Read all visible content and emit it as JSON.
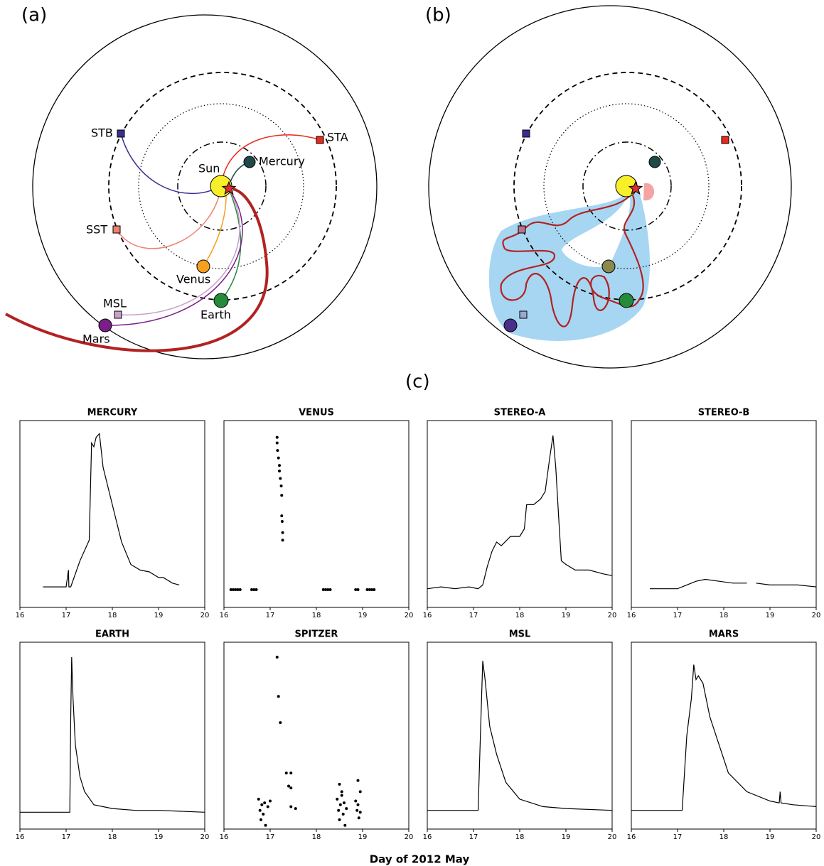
{
  "panels": {
    "a": "(a)",
    "b": "(b)",
    "c": "(c)"
  },
  "diagram_labels": [
    "STB",
    "STA",
    "Sun",
    "Mercury",
    "SST",
    "Venus",
    "MSL",
    "Earth",
    "Mars"
  ],
  "x_label": "Day of 2012 May",
  "chart_data": [
    {
      "type": "line",
      "title": "MERCURY",
      "color": "#000000",
      "xlim": [
        16,
        20
      ],
      "ylim": [
        0,
        1
      ],
      "xticks": [
        16,
        17,
        18,
        19,
        20
      ],
      "x": [
        16.5,
        16.8,
        17.0,
        17.05,
        17.06,
        17.1,
        17.3,
        17.5,
        17.55,
        17.6,
        17.65,
        17.72,
        17.8,
        18.0,
        18.2,
        18.4,
        18.6,
        18.8,
        19.0,
        19.1,
        19.3,
        19.45
      ],
      "values": [
        0.11,
        0.11,
        0.11,
        0.2,
        0.11,
        0.11,
        0.25,
        0.36,
        0.88,
        0.86,
        0.91,
        0.93,
        0.75,
        0.55,
        0.35,
        0.23,
        0.2,
        0.19,
        0.16,
        0.16,
        0.13,
        0.12
      ]
    },
    {
      "type": "scatter",
      "title": "VENUS",
      "color": "#000000",
      "xlim": [
        16,
        20
      ],
      "ylim": [
        0,
        1
      ],
      "xticks": [
        16,
        17,
        18,
        19,
        20
      ],
      "x": [
        16.15,
        16.2,
        16.25,
        16.3,
        16.35,
        16.6,
        16.65,
        16.7,
        17.15,
        17.15,
        17.16,
        17.18,
        17.2,
        17.2,
        17.22,
        17.24,
        17.25,
        17.25,
        17.26,
        17.27,
        17.27,
        18.15,
        18.2,
        18.25,
        18.3,
        18.85,
        18.9,
        19.1,
        19.15,
        19.2,
        19.25
      ],
      "values": [
        0.095,
        0.095,
        0.095,
        0.095,
        0.095,
        0.095,
        0.095,
        0.095,
        0.91,
        0.88,
        0.84,
        0.8,
        0.76,
        0.73,
        0.69,
        0.65,
        0.6,
        0.49,
        0.46,
        0.4,
        0.36,
        0.095,
        0.095,
        0.095,
        0.095,
        0.095,
        0.095,
        0.095,
        0.095,
        0.095,
        0.095
      ]
    },
    {
      "type": "line",
      "title": "STEREO-A",
      "color": "#000000",
      "xlim": [
        16,
        20
      ],
      "ylim": [
        0,
        1
      ],
      "xticks": [
        16,
        17,
        18,
        19,
        20
      ],
      "x": [
        16.0,
        16.3,
        16.6,
        16.9,
        17.1,
        17.2,
        17.3,
        17.4,
        17.5,
        17.6,
        17.8,
        18.0,
        18.1,
        18.15,
        18.3,
        18.45,
        18.55,
        18.65,
        18.72,
        18.78,
        18.85,
        18.9,
        19.0,
        19.2,
        19.5,
        19.8,
        20.0
      ],
      "values": [
        0.1,
        0.11,
        0.1,
        0.11,
        0.1,
        0.12,
        0.22,
        0.3,
        0.35,
        0.33,
        0.38,
        0.38,
        0.42,
        0.55,
        0.55,
        0.58,
        0.62,
        0.8,
        0.92,
        0.75,
        0.45,
        0.25,
        0.23,
        0.2,
        0.2,
        0.18,
        0.17
      ]
    },
    {
      "type": "line",
      "title": "STEREO-B",
      "color": "#000000",
      "xlim": [
        16,
        20
      ],
      "ylim": [
        0,
        1
      ],
      "xticks": [
        16,
        17,
        18,
        19,
        20
      ],
      "x": [
        16.4,
        16.7,
        17.0,
        17.2,
        17.4,
        17.6,
        17.9,
        18.2,
        18.5,
        18.6,
        18.7,
        19.0,
        19.3,
        19.6,
        20.0
      ],
      "values": [
        0.1,
        0.1,
        0.1,
        0.12,
        0.14,
        0.15,
        0.14,
        0.13,
        0.13,
        null,
        0.13,
        0.12,
        0.12,
        0.12,
        0.11
      ]
    },
    {
      "type": "line",
      "title": "EARTH",
      "color": "#000000",
      "xlim": [
        16,
        20
      ],
      "ylim": [
        0,
        1
      ],
      "xticks": [
        16,
        17,
        18,
        19,
        20
      ],
      "x": [
        16.0,
        16.5,
        17.08,
        17.1,
        17.12,
        17.15,
        17.2,
        17.3,
        17.4,
        17.6,
        18.0,
        18.5,
        19.0,
        20.0
      ],
      "values": [
        0.09,
        0.09,
        0.09,
        0.6,
        0.92,
        0.7,
        0.45,
        0.28,
        0.2,
        0.13,
        0.11,
        0.1,
        0.1,
        0.09
      ]
    },
    {
      "type": "scatter",
      "title": "SPITZER",
      "color": "#000000",
      "xlim": [
        16,
        20
      ],
      "ylim": [
        0,
        1
      ],
      "xticks": [
        16,
        17,
        18,
        19,
        20
      ],
      "x": [
        16.75,
        16.78,
        16.8,
        16.82,
        16.85,
        16.88,
        16.9,
        16.95,
        17.0,
        17.15,
        17.18,
        17.22,
        17.35,
        17.45,
        17.4,
        17.45,
        17.45,
        17.55,
        18.45,
        18.48,
        18.5,
        18.52,
        18.55,
        18.58,
        18.6,
        18.62,
        18.65,
        18.5,
        18.55,
        18.85,
        18.88,
        18.9,
        18.92,
        18.95,
        18.9,
        18.95
      ],
      "values": [
        0.16,
        0.1,
        0.05,
        0.13,
        0.08,
        0.14,
        0.02,
        0.12,
        0.15,
        0.92,
        0.71,
        0.57,
        0.3,
        0.3,
        0.23,
        0.22,
        0.12,
        0.11,
        0.16,
        0.1,
        0.05,
        0.13,
        0.2,
        0.08,
        0.14,
        0.02,
        0.11,
        0.24,
        0.18,
        0.15,
        0.1,
        0.26,
        0.06,
        0.2,
        0.13,
        0.09
      ]
    },
    {
      "type": "line",
      "title": "MSL",
      "color": "#000000",
      "xlim": [
        16,
        20
      ],
      "ylim": [
        0,
        1
      ],
      "xticks": [
        16,
        17,
        18,
        19,
        20
      ],
      "x": [
        16.0,
        16.5,
        17.1,
        17.15,
        17.2,
        17.25,
        17.35,
        17.5,
        17.7,
        18.0,
        18.5,
        19.0,
        20.0
      ],
      "values": [
        0.1,
        0.1,
        0.1,
        0.5,
        0.9,
        0.8,
        0.55,
        0.4,
        0.25,
        0.16,
        0.12,
        0.11,
        0.1
      ]
    },
    {
      "type": "line",
      "title": "MARS",
      "color": "#000000",
      "xlim": [
        16,
        20
      ],
      "ylim": [
        0,
        1
      ],
      "xticks": [
        16,
        17,
        18,
        19,
        20
      ],
      "x": [
        16.0,
        16.5,
        17.1,
        17.2,
        17.3,
        17.35,
        17.4,
        17.45,
        17.55,
        17.7,
        17.9,
        18.1,
        18.5,
        19.0,
        19.2,
        19.22,
        19.24,
        19.5,
        20.0
      ],
      "values": [
        0.1,
        0.1,
        0.1,
        0.5,
        0.7,
        0.88,
        0.8,
        0.82,
        0.78,
        0.6,
        0.45,
        0.3,
        0.2,
        0.15,
        0.14,
        0.2,
        0.14,
        0.13,
        0.12
      ]
    }
  ]
}
